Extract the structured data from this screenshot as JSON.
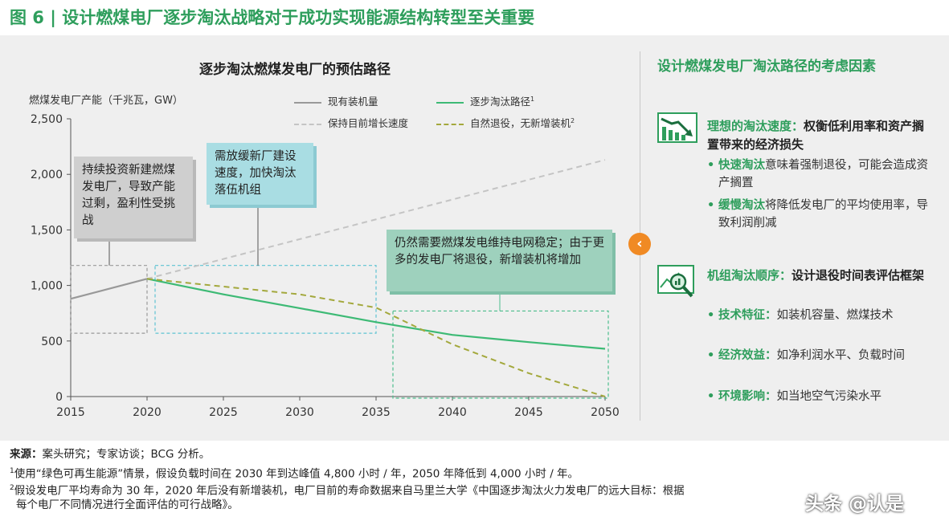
{
  "figure_title": "图 6 | 设计燃煤电厂逐步淘汰战略对于成功实现能源结构转型至关重要",
  "chart_data": {
    "type": "line",
    "title": "逐步淘汰燃煤发电厂的预估路径",
    "xlabel": "",
    "ylabel": "燃煤发电厂产能（千兆瓦，GW）",
    "xlim": [
      2015,
      2050
    ],
    "ylim": [
      0,
      2500
    ],
    "x_ticks": [
      "2015",
      "2020",
      "2025",
      "2030",
      "2035",
      "2040",
      "2045",
      "2050"
    ],
    "y_ticks": [
      "0",
      "500",
      "1,000",
      "1,500",
      "2,000",
      "2,500"
    ],
    "series": [
      {
        "name": "现有装机量",
        "style": "solid",
        "color": "#999999",
        "x": [
          2015,
          2020
        ],
        "values": [
          880,
          1060
        ]
      },
      {
        "name": "保持目前增长速度",
        "style": "dashed",
        "color": "#c4c4c4",
        "x": [
          2020,
          2050
        ],
        "values": [
          1060,
          2130
        ]
      },
      {
        "name": "逐步淘汰路径",
        "sup": "1",
        "style": "solid",
        "color": "#3dba75",
        "x": [
          2020,
          2025,
          2030,
          2035,
          2040,
          2045,
          2050
        ],
        "values": [
          1060,
          920,
          795,
          670,
          555,
          490,
          430
        ]
      },
      {
        "name": "自然退役，无新增装机",
        "sup": "2",
        "style": "dashed",
        "color": "#a3a83c",
        "x": [
          2020,
          2025,
          2030,
          2035,
          2040,
          2045,
          2050
        ],
        "values": [
          1060,
          990,
          920,
          800,
          470,
          210,
          0
        ]
      }
    ],
    "annotations": [
      {
        "text": "持续投资新建燃煤发电厂，导致产能过剩，盈利性受挑战",
        "range": [
          2015,
          2020
        ]
      },
      {
        "text": "需放缓新厂建设速度，加快淘汰落伍机组",
        "range": [
          2020,
          2035
        ]
      },
      {
        "text": "仍然需要燃煤发电维持电网稳定；由于更多的发电厂将退役，新增装机将增加",
        "range": [
          2036,
          2050
        ]
      }
    ]
  },
  "callouts": {
    "c1": "持续投资新建燃煤发电厂，导致产能过剩，盈利性受挑战",
    "c2": "需放缓新厂建设速度，加快淘汰落伍机组",
    "c3": "仍然需要燃煤发电维持电网稳定；由于更多的发电厂将退役，新增装机将增加"
  },
  "legend": {
    "existing": "现有装机量",
    "keep_growth": "保持目前增长速度",
    "phaseout": "逐步淘汰路径",
    "phaseout_sup": "1",
    "natural": "自然退役，无新增装机",
    "natural_sup": "2"
  },
  "right_panel": {
    "title": "设计燃煤发电厂淘汰路径的考虑因素",
    "factor1": {
      "head_green": "理想的淘汰速度：",
      "head_rest": "权衡低利用率和资产搁置带来的经济损失",
      "bullets": [
        {
          "key": "快速淘汰",
          "text": "意味着强制退役，可能会造成资产搁置"
        },
        {
          "key": "缓慢淘汰",
          "text": "将降低发电厂的平均使用率，导致利润削减"
        }
      ]
    },
    "factor2": {
      "head_green": "机组淘汰顺序：",
      "head_rest": "设计退役时间表评估框架",
      "bullets": [
        {
          "key": "技术特征：",
          "text": "如装机容量、燃煤技术"
        },
        {
          "key": "经济效益：",
          "text": "如净利润水平、负载时间"
        },
        {
          "key": "环境影响：",
          "text": "如当地空气污染水平"
        }
      ]
    },
    "icons": [
      "declining-chart-icon",
      "magnifier-chart-icon"
    ],
    "colors": {
      "accent": "#2e9e5c",
      "orange": "#f08a24"
    }
  },
  "nav": {
    "arrow_icon": "chevron-left-icon",
    "arrow_glyph": "‹"
  },
  "footer": {
    "source_bold": "来源：",
    "source_text": "案头研究；专家访谈；BCG 分析。",
    "note1_num": "1",
    "note1": "使用“绿色可再生能源”情景，假设负载时间在 2030 年到达峰值 4,800 小时 / 年，2050 年降低到 4,000 小时 / 年。",
    "note2_num": "2",
    "note2_line1": "假设发电厂平均寿命为 30 年，2020 年后没有新增装机，电厂目前的寿命数据来自马里兰大学《中国逐步淘汰火力发电厂的远大目标：根据",
    "note2_line2": "每个电厂不同情况进行全面评估的可行战略》。"
  },
  "watermark": "头条 @认是"
}
